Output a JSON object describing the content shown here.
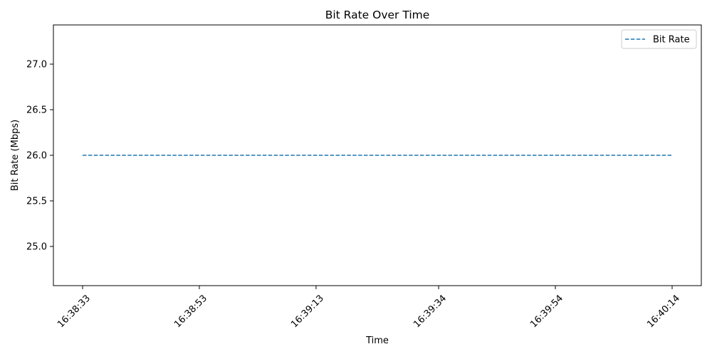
{
  "chart_data": {
    "type": "line",
    "title": "Bit Rate Over Time",
    "xlabel": "Time",
    "ylabel": "Bit Rate (Mbps)",
    "x_tick_labels": [
      "16:38:33",
      "16:38:53",
      "16:39:13",
      "16:39:34",
      "16:39:54",
      "16:40:14"
    ],
    "xlim": [
      "16:38:28",
      "16:40:19"
    ],
    "ylim": [
      24.57,
      27.43
    ],
    "y_ticks": [
      25.0,
      25.5,
      26.0,
      26.5,
      27.0
    ],
    "y_tick_labels": [
      "25.0",
      "25.5",
      "26.0",
      "26.5",
      "27.0"
    ],
    "series": [
      {
        "name": "Bit Rate",
        "color": "#1f77b4",
        "line_style": "dashed",
        "x": [
          "16:38:33",
          "16:40:14"
        ],
        "values": [
          26.0,
          26.0
        ]
      }
    ],
    "legend": {
      "placement": "top-right"
    },
    "grid": false
  }
}
